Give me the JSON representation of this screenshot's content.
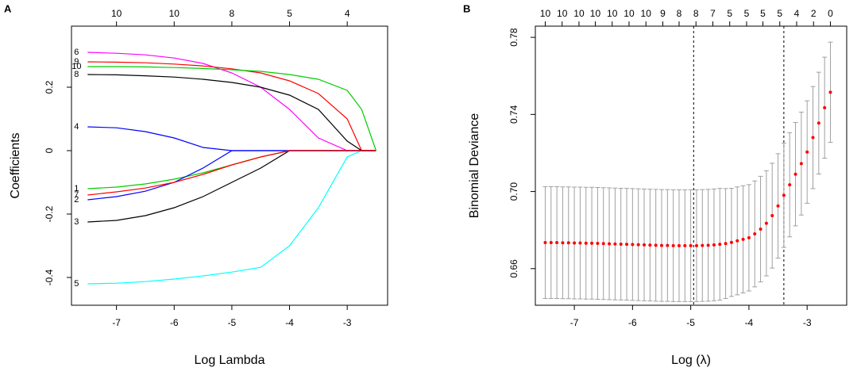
{
  "chart_data": [
    {
      "type": "line",
      "panel": "A",
      "xlabel": "Log Lambda",
      "ylabel": "Coefficients",
      "xlim": [
        -7.78,
        -2.3
      ],
      "ylim": [
        -0.4875,
        0.3925
      ],
      "xticks": [
        -7,
        -6,
        -5,
        -4,
        -3
      ],
      "yticks": [
        -0.4,
        -0.2,
        0,
        0.2
      ],
      "top_ticks": [
        {
          "value": -7,
          "label": "10"
        },
        {
          "value": -6,
          "label": "10"
        },
        {
          "value": -5,
          "label": "8"
        },
        {
          "value": -4,
          "label": "5"
        },
        {
          "value": -3,
          "label": "4"
        }
      ],
      "x": [
        -7.5,
        -7,
        -6.5,
        -6,
        -5.5,
        -5,
        -4.5,
        -4,
        -3.5,
        -3,
        -2.75,
        -2.5
      ],
      "series": [
        {
          "name": "1",
          "color": "#00cd00",
          "values": [
            -0.12,
            -0.115,
            -0.105,
            -0.09,
            -0.07,
            -0.045,
            -0.02,
            0,
            0,
            0,
            0,
            0
          ]
        },
        {
          "name": "2",
          "color": "#0000ff",
          "values": [
            -0.155,
            -0.145,
            -0.128,
            -0.1,
            -0.055,
            0,
            0,
            0,
            0,
            0,
            0,
            0
          ]
        },
        {
          "name": "3",
          "color": "#000000",
          "values": [
            -0.225,
            -0.22,
            -0.205,
            -0.18,
            -0.145,
            -0.1,
            -0.055,
            0,
            0,
            0,
            0,
            0
          ]
        },
        {
          "name": "4",
          "color": "#0000ff",
          "values": [
            0.075,
            0.072,
            0.06,
            0.04,
            0.01,
            0,
            0,
            0,
            0,
            0,
            0,
            0
          ]
        },
        {
          "name": "5",
          "color": "#00ffff",
          "values": [
            -0.42,
            -0.418,
            -0.413,
            -0.405,
            -0.395,
            -0.383,
            -0.368,
            -0.3,
            -0.18,
            -0.02,
            0,
            0
          ]
        },
        {
          "name": "6",
          "color": "#ff00ff",
          "values": [
            0.31,
            0.307,
            0.302,
            0.292,
            0.275,
            0.245,
            0.2,
            0.13,
            0.04,
            0,
            0,
            0
          ]
        },
        {
          "name": "7",
          "color": "#ff0000",
          "values": [
            -0.14,
            -0.13,
            -0.118,
            -0.1,
            -0.075,
            -0.045,
            -0.02,
            0,
            0,
            0,
            0,
            0
          ]
        },
        {
          "name": "8",
          "color": "#000000",
          "values": [
            0.24,
            0.239,
            0.236,
            0.232,
            0.225,
            0.215,
            0.2,
            0.175,
            0.13,
            0.03,
            0,
            0
          ]
        },
        {
          "name": "9",
          "color": "#ff0000",
          "values": [
            0.28,
            0.279,
            0.277,
            0.273,
            0.267,
            0.258,
            0.245,
            0.22,
            0.18,
            0.1,
            0,
            0
          ]
        },
        {
          "name": "10",
          "color": "#00cd00",
          "values": [
            0.265,
            0.265,
            0.264,
            0.262,
            0.259,
            0.255,
            0.25,
            0.24,
            0.225,
            0.19,
            0.13,
            0
          ]
        }
      ]
    },
    {
      "type": "errorbar",
      "panel": "B",
      "xlabel": "Log (λ)",
      "ylabel": "Binomial Deviance",
      "xlim": [
        -7.67,
        -2.32
      ],
      "ylim": [
        0.641,
        0.7858
      ],
      "xticks": [
        -7,
        -6,
        -5,
        -4,
        -3
      ],
      "yticks": [
        0.66,
        {
          "value": 0.7,
          "label": "0.70"
        },
        0.74,
        0.78
      ],
      "top_ticks": [
        {
          "value": -7.5,
          "label": "10"
        },
        {
          "value": -7.21,
          "label": "10"
        },
        {
          "value": -6.92,
          "label": "10"
        },
        {
          "value": -6.64,
          "label": "10"
        },
        {
          "value": -6.35,
          "label": "10"
        },
        {
          "value": -6.06,
          "label": "10"
        },
        {
          "value": -5.77,
          "label": "10"
        },
        {
          "value": -5.48,
          "label": "9"
        },
        {
          "value": -5.2,
          "label": "8"
        },
        {
          "value": -4.91,
          "label": "8"
        },
        {
          "value": -4.62,
          "label": "7"
        },
        {
          "value": -4.33,
          "label": "5"
        },
        {
          "value": -4.04,
          "label": "5"
        },
        {
          "value": -3.76,
          "label": "5"
        },
        {
          "value": -3.47,
          "label": "5"
        },
        {
          "value": -3.18,
          "label": "4"
        },
        {
          "value": -2.89,
          "label": "2"
        },
        {
          "value": -2.6,
          "label": "0"
        }
      ],
      "vlines": [
        -4.95,
        -3.4
      ],
      "color": "#ff0000",
      "error_color": "#a0a0a0",
      "x": [
        -7.5,
        -7.4,
        -7.3,
        -7.2,
        -7.1,
        -7.0,
        -6.9,
        -6.8,
        -6.7,
        -6.6,
        -6.5,
        -6.4,
        -6.3,
        -6.2,
        -6.1,
        -6.0,
        -5.9,
        -5.8,
        -5.7,
        -5.6,
        -5.5,
        -5.4,
        -5.3,
        -5.2,
        -5.1,
        -5.0,
        -4.9,
        -4.8,
        -4.7,
        -4.6,
        -4.5,
        -4.4,
        -4.3,
        -4.2,
        -4.1,
        -4.0,
        -3.9,
        -3.8,
        -3.7,
        -3.6,
        -3.5,
        -3.4,
        -3.3,
        -3.2,
        -3.1,
        -3.0,
        -2.9,
        -2.8,
        -2.7,
        -2.6
      ],
      "values": [
        0.6735,
        0.6735,
        0.6735,
        0.6734,
        0.6734,
        0.6733,
        0.6733,
        0.6732,
        0.6732,
        0.6731,
        0.673,
        0.6729,
        0.6728,
        0.6727,
        0.6726,
        0.6725,
        0.6724,
        0.6723,
        0.6722,
        0.6721,
        0.672,
        0.672,
        0.6719,
        0.6719,
        0.6719,
        0.6719,
        0.6719,
        0.672,
        0.6721,
        0.6723,
        0.6726,
        0.673,
        0.6736,
        0.6744,
        0.6752,
        0.676,
        0.678,
        0.6805,
        0.6835,
        0.6875,
        0.6925,
        0.698,
        0.7035,
        0.709,
        0.7145,
        0.7205,
        0.728,
        0.7355,
        0.7435,
        0.7515
      ],
      "errors": [
        0.029,
        0.029,
        0.029,
        0.029,
        0.029,
        0.029,
        0.029,
        0.029,
        0.029,
        0.029,
        0.029,
        0.029,
        0.029,
        0.029,
        0.029,
        0.029,
        0.029,
        0.029,
        0.029,
        0.029,
        0.029,
        0.029,
        0.029,
        0.029,
        0.029,
        0.029,
        0.029,
        0.029,
        0.029,
        0.029,
        0.029,
        0.0285,
        0.028,
        0.028,
        0.0278,
        0.0276,
        0.0275,
        0.0274,
        0.0273,
        0.0272,
        0.0271,
        0.027,
        0.027,
        0.0268,
        0.0267,
        0.0266,
        0.0265,
        0.0264,
        0.0262,
        0.026
      ]
    }
  ]
}
